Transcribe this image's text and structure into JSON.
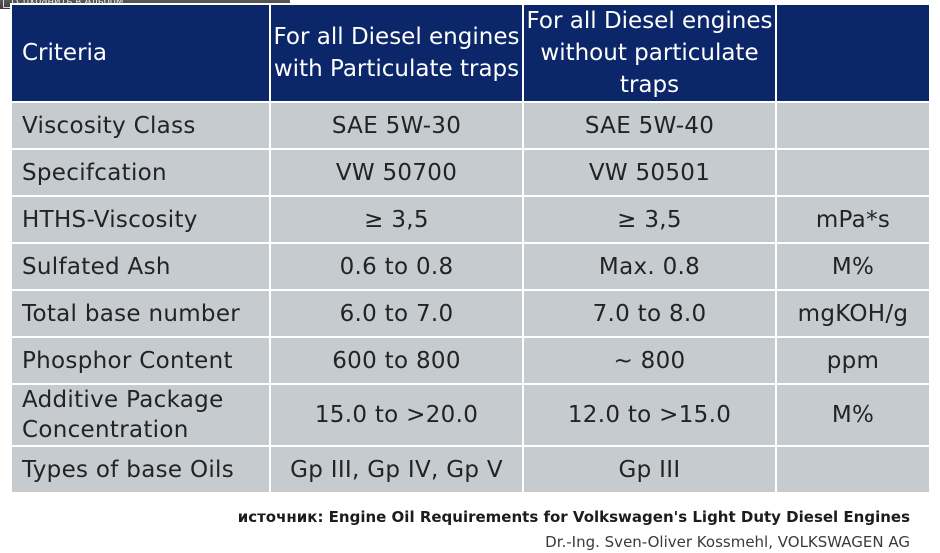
{
  "toolbar": {
    "save_label": "Сохранить в Альбом"
  },
  "table": {
    "headers": [
      "Criteria",
      "For all Diesel engines with Particulate traps",
      "For all Diesel engines without particulate traps",
      ""
    ],
    "rows": [
      [
        "Viscosity Class",
        "SAE 5W-30",
        "SAE 5W-40",
        ""
      ],
      [
        "Specifcation",
        "VW 50700",
        "VW 50501",
        ""
      ],
      [
        "HTHS-Viscosity",
        "≥ 3,5",
        "≥ 3,5",
        "mPa*s"
      ],
      [
        "Sulfated Ash",
        "0.6 to 0.8",
        "Max. 0.8",
        "M%"
      ],
      [
        "Total base number",
        "6.0 to 7.0",
        "7.0 to 8.0",
        "mgKOH/g"
      ],
      [
        "Phosphor Content",
        "600 to 800",
        "~ 800",
        "ppm"
      ],
      [
        "Additive Package Concentration",
        "15.0 to >20.0",
        "12.0 to >15.0",
        "M%"
      ],
      [
        "Types of base Oils",
        "Gp III, Gp IV, Gp V",
        "Gp III",
        ""
      ]
    ]
  },
  "footer": {
    "source": "источник:  Engine Oil Requirements for Volkswagen's Light Duty Diesel Engines",
    "author": "Dr.-Ing. Sven-Oliver Kossmehl, VOLKSWAGEN AG"
  }
}
